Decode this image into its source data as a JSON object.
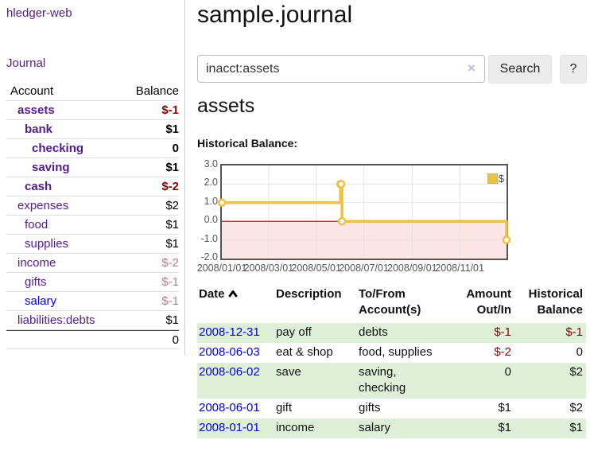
{
  "app": {
    "brand": "hledger-web",
    "nav_journal": "Journal"
  },
  "page": {
    "title": "sample.journal",
    "account_heading": "assets",
    "chart_label": "Historical Balance:"
  },
  "search": {
    "value": "inacct:assets",
    "clear_icon": "×",
    "search_button": "Search",
    "help_button": "?"
  },
  "sidebar_table": {
    "account_header": "Account",
    "balance_header": "Balance",
    "accounts": [
      {
        "name": "assets",
        "level": 1,
        "balance": "$-1",
        "bold": true,
        "name_color": "purple",
        "balance_tone": "negative"
      },
      {
        "name": "bank",
        "level": 2,
        "balance": "$1",
        "bold": true,
        "name_color": "purple",
        "balance_tone": "normal"
      },
      {
        "name": "checking",
        "level": 3,
        "balance": "0",
        "bold": true,
        "name_color": "purple",
        "balance_tone": "normal"
      },
      {
        "name": "saving",
        "level": 3,
        "balance": "$1",
        "bold": true,
        "name_color": "purple",
        "balance_tone": "normal"
      },
      {
        "name": "cash",
        "level": 2,
        "balance": "$-2",
        "bold": true,
        "name_color": "purple",
        "balance_tone": "negative"
      },
      {
        "name": "expenses",
        "level": 1,
        "balance": "$2",
        "bold": false,
        "name_color": "purple",
        "balance_tone": "normal"
      },
      {
        "name": "food",
        "level": 2,
        "balance": "$1",
        "bold": false,
        "name_color": "purple",
        "balance_tone": "normal"
      },
      {
        "name": "supplies",
        "level": 2,
        "balance": "$1",
        "bold": false,
        "name_color": "purple",
        "balance_tone": "normal"
      },
      {
        "name": "income",
        "level": 1,
        "balance": "$-2",
        "bold": false,
        "name_color": "purple",
        "balance_tone": "negative-soft"
      },
      {
        "name": "gifts",
        "level": 2,
        "balance": "$-1",
        "bold": false,
        "name_color": "purple",
        "balance_tone": "negative-soft"
      },
      {
        "name": "salary",
        "level": 2,
        "balance": "$-1",
        "bold": false,
        "name_color": "blue",
        "balance_tone": "negative-soft"
      },
      {
        "name": "liabilities:debts",
        "level": 1,
        "balance": "$1",
        "bold": false,
        "name_color": "purple",
        "balance_tone": "normal"
      }
    ],
    "total": "0"
  },
  "chart_data": {
    "type": "line",
    "step": true,
    "title": "Historical Balance:",
    "x_start": "2008-01-01",
    "x_end": "2008-12-31",
    "ylim": [
      -2,
      3
    ],
    "y_ticks": [
      "3.0",
      "2.0",
      "1.0",
      "0.0",
      "-1.0",
      "-2.0"
    ],
    "x_ticks": [
      {
        "label": "2008/01/01",
        "date": "2008-01-01"
      },
      {
        "label": "2008/03/01",
        "date": "2008-03-01"
      },
      {
        "label": "2008/05/01",
        "date": "2008-05-01"
      },
      {
        "label": "2008/07/01",
        "date": "2008-07-01"
      },
      {
        "label": "2008/09/01",
        "date": "2008-09-01"
      },
      {
        "label": "2008/11/01",
        "date": "2008-11-01"
      }
    ],
    "series": [
      {
        "name": "$",
        "color": "#edc240",
        "points": [
          {
            "date": "2008-01-01",
            "value": 1
          },
          {
            "date": "2008-06-01",
            "value": 2
          },
          {
            "date": "2008-06-02",
            "value": 2
          },
          {
            "date": "2008-06-03",
            "value": 0
          },
          {
            "date": "2008-12-31",
            "value": -1
          }
        ]
      }
    ],
    "legend": {
      "position": "top-right",
      "label": "$"
    },
    "grid": true,
    "gridline_color": "#e3e3e3",
    "zero_line_color": "#aa0000",
    "negative_region_color": "#fbe5e5"
  },
  "register": {
    "headers": {
      "date": "Date",
      "description": "Description",
      "accounts": "To/From Account(s)",
      "amount": "Amount Out/In",
      "balance": "Historical Balance"
    },
    "sort": {
      "column": "date",
      "direction": "ascending",
      "icon": "chevron-up"
    },
    "rows": [
      {
        "date": "2008-12-31",
        "description": "pay off",
        "accounts": "debts",
        "amount": "$-1",
        "amount_negative": true,
        "balance": "$-1",
        "balance_negative": true
      },
      {
        "date": "2008-06-03",
        "description": "eat & shop",
        "accounts": "food, supplies",
        "amount": "$-2",
        "amount_negative": true,
        "balance": "0",
        "balance_negative": false
      },
      {
        "date": "2008-06-02",
        "description": "save",
        "accounts": "saving, checking",
        "amount": "0",
        "amount_negative": false,
        "balance": "$2",
        "balance_negative": false
      },
      {
        "date": "2008-06-01",
        "description": "gift",
        "accounts": "gifts",
        "amount": "$1",
        "amount_negative": false,
        "balance": "$2",
        "balance_negative": false
      },
      {
        "date": "2008-01-01",
        "description": "income",
        "accounts": "salary",
        "amount": "$1",
        "amount_negative": false,
        "balance": "$1",
        "balance_negative": false
      }
    ]
  },
  "colors": {
    "link_purple": "#551a8b",
    "link_blue": "#0000e0",
    "negative_strong": "#8b0000",
    "negative_soft": "#b87e7e",
    "row_stripe_green": "#dff0d8",
    "series_gold": "#edc240"
  }
}
